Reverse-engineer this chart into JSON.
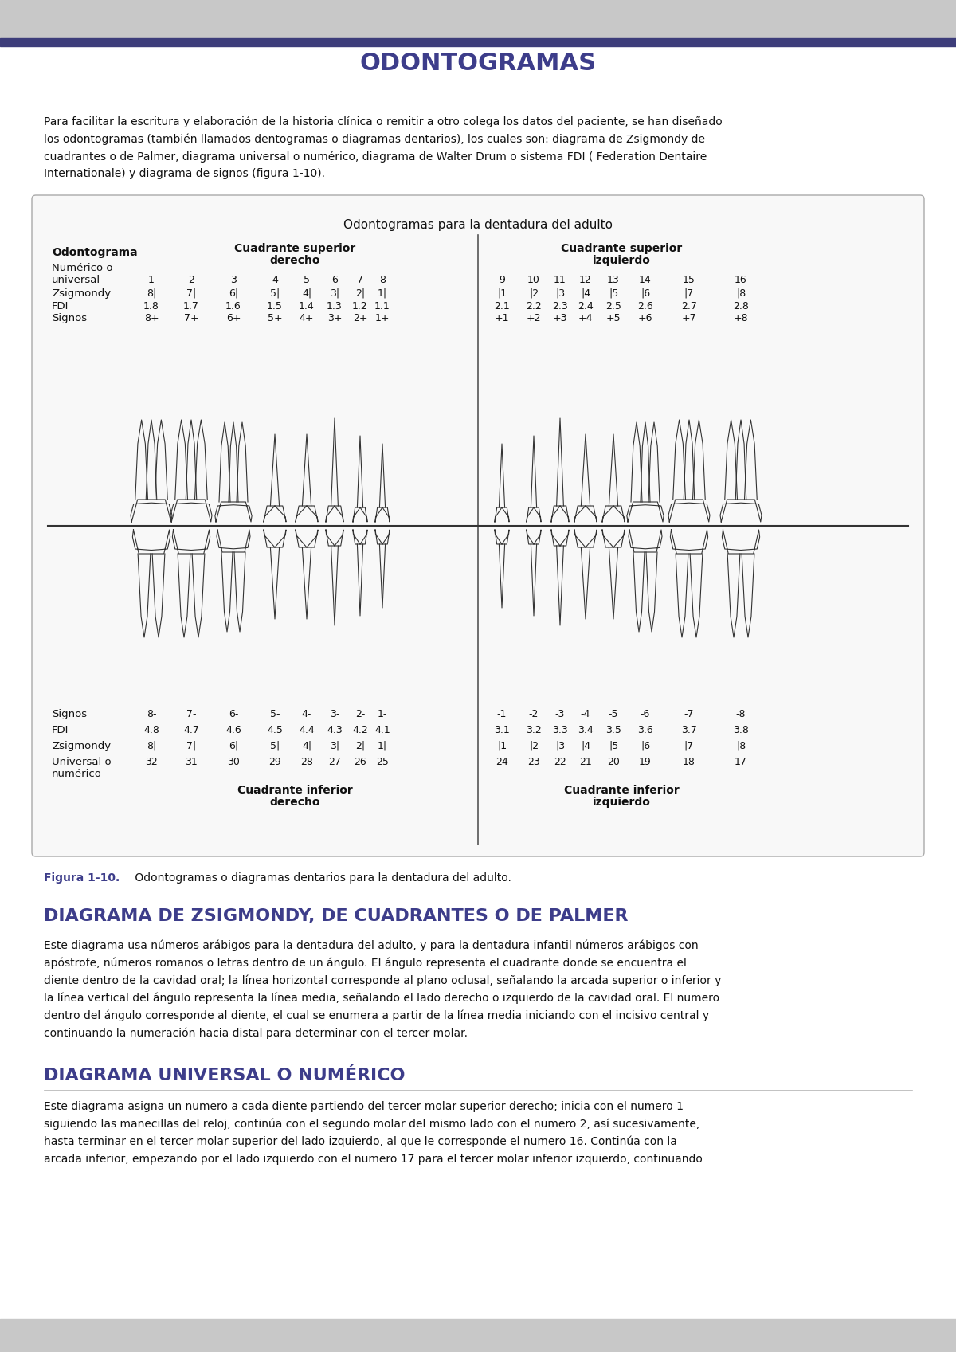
{
  "bg_header_color": "#c8c8c8",
  "header_bar_color": "#3d3d7a",
  "page_bg": "#ffffff",
  "title": "ODONTOGRAMAS",
  "title_color": "#3d3d8a",
  "intro_text": "Para facilitar la escritura y elaboración de la historia clínica o remitir a otro colega los datos del paciente, se han diseñado los odontogramas (también llamados dentogramas o diagramas dentarios), los cuales son: diagrama de Zsigmondy de cuadrantes o de Palmer, diagrama universal o numérico, diagrama de Walter Drum o sistema FDI ( Federation Dentaire Internationale) y diagrama de signos (figura 1-10).",
  "figure_box_title": "Odontogramas para la dentadura del adulto",
  "figure_caption_bold": "Figura 1-10.",
  "figure_caption_text": " Odontogramas o diagramas dentarios para la dentadura del adulto.",
  "section1_title": "DIAGRAMA DE ZSIGMONDY, DE CUADRANTES O DE PALMER",
  "section1_color": "#3d3d8a",
  "section1_text": "Este diagrama usa números arábigos para la dentadura del adulto, y para la dentadura infantil números arábigos con apóstrofe, números romanos o letras dentro de un ángulo. El ángulo representa el cuadrante donde se encuentra el diente dentro de la cavidad oral; la línea horizontal corresponde al plano oclusal, señalando la arcada superior o inferior y la línea vertical del ángulo representa la línea media, señalando el lado derecho o izquierdo de la cavidad oral. El numero dentro del ángulo corresponde al diente, el cual se enumera a partir de la línea media iniciando con el incisivo central y continuando la numeración hacia distal para determinar con el tercer molar.",
  "section2_title": "DIAGRAMA UNIVERSAL O NUMÉRICO",
  "section2_color": "#3d3d8a",
  "section2_text": "Este diagrama asigna un numero a cada diente partiendo del tercer molar superior derecho; inicia con el numero 1 siguiendo las manecillas del reloj, continúa con el segundo molar del mismo lado con el numero 2, así sucesivamente, hasta terminar en el tercer molar superior del lado izquierdo, al que le corresponde el numero 16. Continúa con la arcada inferior, empezando por el lado izquierdo con el numero 17 para el tercer molar inferior izquierdo, continuando"
}
